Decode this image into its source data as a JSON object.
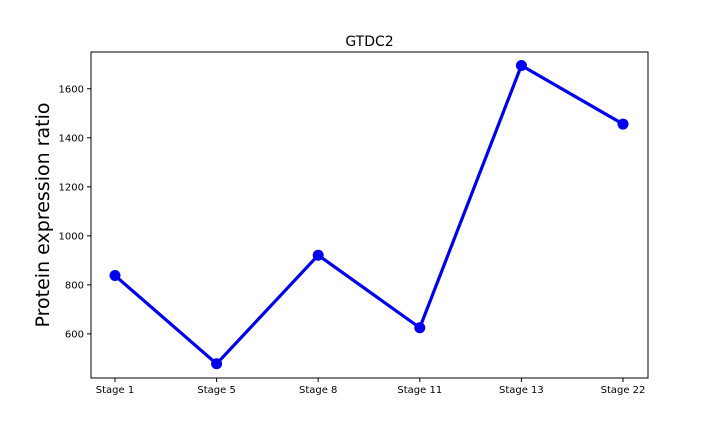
{
  "chart_data": {
    "type": "line",
    "title": "GTDC2",
    "xlabel": "",
    "ylabel": "Protein expression ratio",
    "categories": [
      "Stage 1",
      "Stage 5",
      "Stage 8",
      "Stage 11",
      "Stage 13",
      "Stage 22"
    ],
    "series": [
      {
        "values": [
          838,
          478,
          921,
          625,
          1695,
          1456
        ],
        "color": "#0000ee"
      }
    ],
    "ylim": [
      420,
      1750
    ],
    "yticks": [
      600,
      800,
      1000,
      1200,
      1400,
      1600
    ],
    "grid": false,
    "legend": "none"
  }
}
